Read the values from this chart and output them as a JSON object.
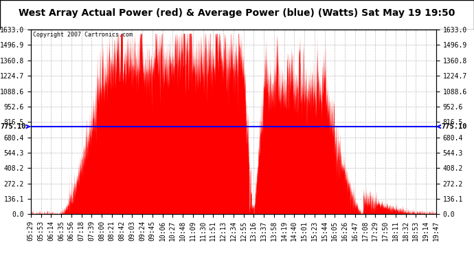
{
  "title": "West Array Actual Power (red) & Average Power (blue) (Watts) Sat May 19 19:50",
  "copyright": "Copyright 2007 Cartronics.com",
  "avg_power": 775.1,
  "avg_label": "775.10",
  "y_max": 1633.0,
  "y_min": 0.0,
  "y_ticks": [
    0.0,
    136.1,
    272.2,
    408.2,
    544.3,
    680.4,
    816.5,
    952.6,
    1088.6,
    1224.7,
    1360.8,
    1496.9,
    1633.0
  ],
  "y_tick_labels": [
    "0.0",
    "136.1",
    "272.2",
    "408.2",
    "544.3",
    "680.4",
    "816.5",
    "952.6",
    "1088.6",
    "1224.7",
    "1360.8",
    "1496.9",
    "1633.0"
  ],
  "x_tick_labels": [
    "05:29",
    "05:53",
    "06:14",
    "06:35",
    "06:56",
    "07:18",
    "07:39",
    "08:00",
    "08:21",
    "08:42",
    "09:03",
    "09:24",
    "09:45",
    "10:06",
    "10:27",
    "10:48",
    "11:09",
    "11:30",
    "11:51",
    "12:13",
    "12:34",
    "12:55",
    "13:16",
    "13:37",
    "13:58",
    "14:19",
    "14:40",
    "15:01",
    "15:23",
    "15:44",
    "16:05",
    "16:26",
    "16:47",
    "17:08",
    "17:29",
    "17:50",
    "18:11",
    "18:32",
    "18:53",
    "19:14",
    "19:47"
  ],
  "background_color": "#ffffff",
  "plot_bg_color": "#ffffff",
  "grid_color": "#aaaaaa",
  "fill_color": "#ff0000",
  "line_color": "#0000ff",
  "title_fontsize": 10,
  "tick_fontsize": 7,
  "figwidth": 6.9,
  "figheight": 3.75,
  "dpi": 100
}
